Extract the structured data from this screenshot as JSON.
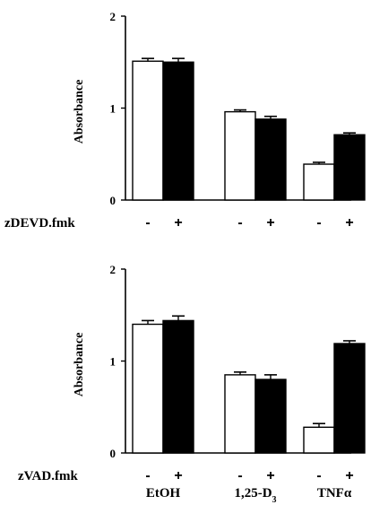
{
  "chart_data": [
    {
      "type": "bar",
      "ylabel": "Absorbance",
      "ylim": [
        0,
        2
      ],
      "yticks": [
        "0",
        "1",
        "2"
      ],
      "inhibitor_label": "zDEVD.fmk",
      "signs": [
        "-",
        "+"
      ],
      "categories": [
        "EtOH",
        "1,25-D3",
        "TNFα"
      ],
      "series": [
        {
          "treatment": "-",
          "fill": "#ffffff",
          "values": [
            1.51,
            0.96,
            0.39
          ],
          "errors": [
            0.03,
            0.02,
            0.02
          ]
        },
        {
          "treatment": "+",
          "fill": "#000000",
          "values": [
            1.5,
            0.88,
            0.71
          ],
          "errors": [
            0.04,
            0.03,
            0.02
          ]
        }
      ]
    },
    {
      "type": "bar",
      "ylabel": "Absorbance",
      "ylim": [
        0,
        2
      ],
      "yticks": [
        "0",
        "1",
        "2"
      ],
      "inhibitor_label": "zVAD.fmk",
      "signs": [
        "-",
        "+"
      ],
      "categories": [
        "EtOH",
        "1,25-D3",
        "TNFα"
      ],
      "category_display": [
        {
          "main": "EtOH",
          "sub": ""
        },
        {
          "main": "1,25-D",
          "sub": "3"
        },
        {
          "main": "TNFα",
          "sub": ""
        }
      ],
      "series": [
        {
          "treatment": "-",
          "fill": "#ffffff",
          "values": [
            1.4,
            0.85,
            0.28
          ],
          "errors": [
            0.04,
            0.03,
            0.04
          ]
        },
        {
          "treatment": "+",
          "fill": "#000000",
          "values": [
            1.44,
            0.8,
            1.19
          ],
          "errors": [
            0.05,
            0.05,
            0.03
          ]
        }
      ]
    }
  ]
}
